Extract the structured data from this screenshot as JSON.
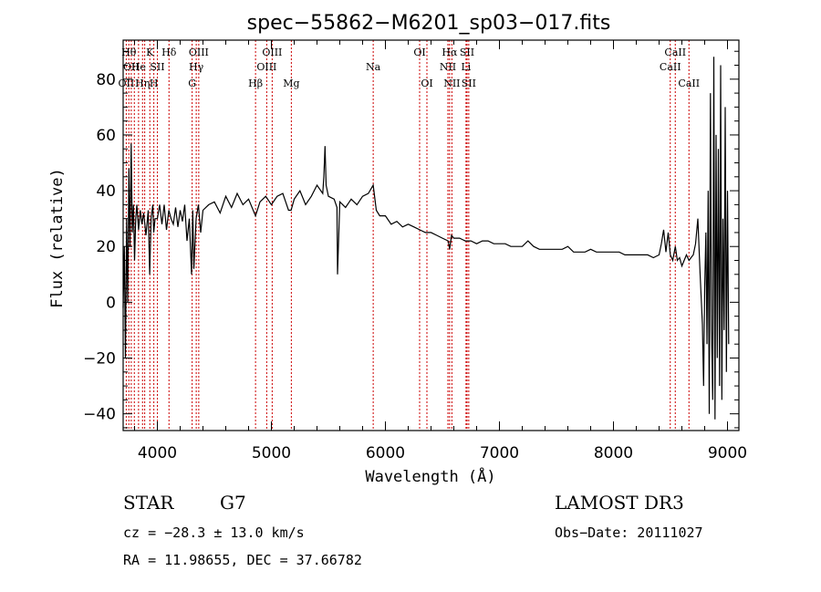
{
  "chart_data": {
    "type": "line",
    "title": "spec−55862−M6201_sp03−017.fits",
    "xlabel": "Wavelength (Å)",
    "ylabel": "Flux (relative)",
    "xlim": [
      3700,
      9100
    ],
    "ylim": [
      -46,
      94
    ],
    "x_ticks": [
      {
        "value": 4000,
        "label": "4000"
      },
      {
        "value": 5000,
        "label": "5000"
      },
      {
        "value": 6000,
        "label": "6000"
      },
      {
        "value": 7000,
        "label": "7000"
      },
      {
        "value": 8000,
        "label": "8000"
      },
      {
        "value": 9000,
        "label": "9000"
      }
    ],
    "y_ticks": [
      {
        "value": -40,
        "label": "−40"
      },
      {
        "value": -20,
        "label": "−20"
      },
      {
        "value": 0,
        "label": "0"
      },
      {
        "value": 20,
        "label": "20"
      },
      {
        "value": 40,
        "label": "40"
      },
      {
        "value": 60,
        "label": "60"
      },
      {
        "value": 80,
        "label": "80"
      }
    ],
    "series": [
      {
        "name": "flux",
        "x": [
          3700,
          3710,
          3720,
          3730,
          3740,
          3750,
          3760,
          3770,
          3780,
          3790,
          3800,
          3810,
          3820,
          3835,
          3850,
          3865,
          3880,
          3900,
          3920,
          3933,
          3945,
          3960,
          3968,
          3980,
          4000,
          4020,
          4040,
          4060,
          4080,
          4101,
          4120,
          4140,
          4160,
          4180,
          4200,
          4220,
          4240,
          4260,
          4280,
          4300,
          4310,
          4320,
          4340,
          4360,
          4380,
          4400,
          4450,
          4500,
          4550,
          4600,
          4650,
          4700,
          4750,
          4800,
          4861,
          4900,
          4950,
          5000,
          5050,
          5100,
          5150,
          5173,
          5200,
          5250,
          5300,
          5350,
          5400,
          5450,
          5460,
          5470,
          5480,
          5500,
          5550,
          5575,
          5580,
          5600,
          5650,
          5700,
          5750,
          5800,
          5850,
          5893,
          5920,
          5950,
          6000,
          6050,
          6100,
          6150,
          6200,
          6250,
          6300,
          6350,
          6400,
          6450,
          6500,
          6550,
          6563,
          6580,
          6600,
          6650,
          6700,
          6750,
          6800,
          6850,
          6900,
          6950,
          7000,
          7050,
          7100,
          7150,
          7200,
          7250,
          7300,
          7350,
          7400,
          7450,
          7500,
          7550,
          7600,
          7650,
          7700,
          7750,
          7800,
          7850,
          7900,
          7950,
          8000,
          8050,
          8100,
          8150,
          8200,
          8250,
          8300,
          8350,
          8400,
          8420,
          8440,
          8460,
          8480,
          8498,
          8520,
          8542,
          8560,
          8580,
          8600,
          8620,
          8640,
          8662,
          8680,
          8700,
          8720,
          8740,
          8760,
          8780,
          8790,
          8800,
          8810,
          8820,
          8830,
          8840,
          8850,
          8860,
          8870,
          8880,
          8890,
          8900,
          8910,
          8920,
          8930,
          8940,
          8950,
          8960,
          8970,
          8980,
          8990,
          9000,
          9010
        ],
        "y": [
          -2,
          20,
          -20,
          30,
          0,
          48,
          20,
          57,
          25,
          35,
          15,
          30,
          35,
          26,
          33,
          28,
          32,
          24,
          33,
          10,
          30,
          35,
          25,
          30,
          30,
          35,
          28,
          35,
          26,
          33,
          30,
          28,
          34,
          27,
          33,
          29,
          35,
          22,
          30,
          10,
          33,
          12,
          30,
          35,
          25,
          33,
          35,
          36,
          32,
          38,
          34,
          39,
          35,
          37,
          31,
          36,
          38,
          35,
          38,
          39,
          33,
          33,
          37,
          40,
          35,
          38,
          42,
          39,
          45,
          56,
          42,
          38,
          37,
          34,
          10,
          36,
          34,
          37,
          35,
          38,
          39,
          42,
          33,
          31,
          31,
          28,
          29,
          27,
          28,
          27,
          26,
          25,
          25,
          24,
          23,
          22,
          19,
          24,
          23,
          23,
          22,
          22,
          21,
          22,
          22,
          21,
          21,
          21,
          20,
          20,
          20,
          22,
          20,
          19,
          19,
          19,
          19,
          19,
          20,
          18,
          18,
          18,
          19,
          18,
          18,
          18,
          18,
          18,
          17,
          17,
          17,
          17,
          17,
          16,
          17,
          21,
          26,
          18,
          25,
          17,
          15,
          20,
          15,
          16,
          13,
          15,
          17,
          15,
          16,
          17,
          21,
          30,
          10,
          -8,
          -30,
          5,
          25,
          -15,
          40,
          -40,
          75,
          -10,
          -35,
          88,
          -42,
          60,
          -20,
          55,
          -30,
          85,
          -35,
          30,
          -10,
          70,
          -25,
          40,
          -15
        ],
        "color": "#000000"
      }
    ],
    "lines": [
      {
        "wavelength": 3727,
        "label": "OII",
        "row": 2
      },
      {
        "wavelength": 3750,
        "label": "Hθ",
        "row": 0
      },
      {
        "wavelength": 3771,
        "label": "OII",
        "row": 1
      },
      {
        "wavelength": 3798,
        "label": "",
        "row": 1
      },
      {
        "wavelength": 3835,
        "label": "He",
        "row": 1
      },
      {
        "wavelength": 3870,
        "label": "Hη",
        "row": 2
      },
      {
        "wavelength": 3889,
        "label": "",
        "row": 0
      },
      {
        "wavelength": 3934,
        "label": "K",
        "row": 0
      },
      {
        "wavelength": 3969,
        "label": "H",
        "row": 2
      },
      {
        "wavelength": 4000,
        "label": "SII",
        "row": 1
      },
      {
        "wavelength": 4102,
        "label": "Hδ",
        "row": 0
      },
      {
        "wavelength": 4305,
        "label": "G",
        "row": 2
      },
      {
        "wavelength": 4341,
        "label": "Hγ",
        "row": 1
      },
      {
        "wavelength": 4363,
        "label": "OIII",
        "row": 0
      },
      {
        "wavelength": 4861,
        "label": "Hβ",
        "row": 2
      },
      {
        "wavelength": 4959,
        "label": "OIII",
        "row": 1
      },
      {
        "wavelength": 5007,
        "label": "OIII",
        "row": 0
      },
      {
        "wavelength": 5175,
        "label": "Mg",
        "row": 2
      },
      {
        "wavelength": 5893,
        "label": "Na",
        "row": 1
      },
      {
        "wavelength": 6300,
        "label": "OI",
        "row": 0
      },
      {
        "wavelength": 6364,
        "label": "OI",
        "row": 2
      },
      {
        "wavelength": 6548,
        "label": "NII",
        "row": 1
      },
      {
        "wavelength": 6563,
        "label": "Hα",
        "row": 0
      },
      {
        "wavelength": 6583,
        "label": "NII",
        "row": 2
      },
      {
        "wavelength": 6707,
        "label": "Li",
        "row": 1
      },
      {
        "wavelength": 6716,
        "label": "SII",
        "row": 0
      },
      {
        "wavelength": 6731,
        "label": "SII",
        "row": 2
      },
      {
        "wavelength": 8498,
        "label": "CaII",
        "row": 1
      },
      {
        "wavelength": 8542,
        "label": "CaII",
        "row": 0
      },
      {
        "wavelength": 8662,
        "label": "CaII",
        "row": 2
      }
    ],
    "line_color": "#cc0000"
  },
  "info": {
    "object_type": "STAR",
    "subclass": "G7",
    "survey": "LAMOST DR3",
    "cz": "cz = −28.3 ± 13.0 km/s",
    "obs_date": "Obs−Date: 20111027",
    "radec": "RA =  11.98655, DEC =  37.66782"
  }
}
